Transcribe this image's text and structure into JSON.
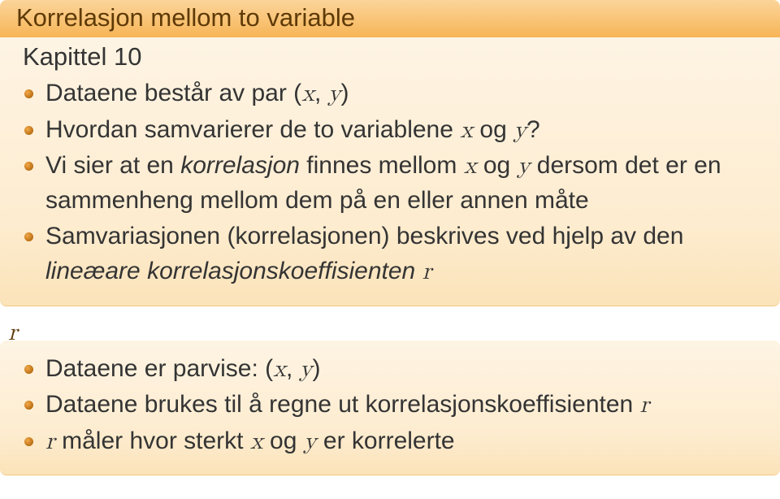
{
  "block1": {
    "title": "Korrelasjon mellom to variable",
    "subtitle": "Kapittel 10",
    "items": [
      {
        "pre": "Dataene består av par (",
        "x": "x",
        "comma": ", ",
        "y": "y",
        "post": ")"
      },
      {
        "pre": "Hvordan samvarierer de to variablene ",
        "x": "x",
        "mid": " og ",
        "y": "y",
        "post": "?"
      },
      {
        "pre": "Vi sier at en ",
        "em": "korrelasjon",
        "post1": " finnes mellom ",
        "x": "x",
        "mid": " og ",
        "y": "y",
        "post2": " dersom det er en sammenheng mellom dem på en eller annen måte"
      },
      {
        "pre": "Samvariasjonen (korrelasjonen) beskrives ved hjelp av den ",
        "em": "lineæare korrelasjonskoeffisienten",
        "sp": "  ",
        "r": "r"
      }
    ]
  },
  "block2": {
    "label": "r",
    "items": [
      {
        "pre": "Dataene er parvise: (",
        "x": "x",
        "comma": ", ",
        "y": "y",
        "post": ")"
      },
      {
        "pre": "Dataene brukes til å regne ut korrelasjonskoeffisienten ",
        "r": "r"
      },
      {
        "r": "r",
        "mid": " måler hvor sterkt ",
        "x": "x",
        "mid2": " og ",
        "y": "y",
        "post": " er korrelerte"
      }
    ]
  },
  "colors": {
    "title_bg_top": "#fbd49a",
    "title_bg_bottom": "#f7b557",
    "title_text": "#5e3a07",
    "body_bg_top": "#fef4e4",
    "body_bg_bottom": "#fbe3b9",
    "bullet": "#b96f14",
    "text": "#343434"
  }
}
